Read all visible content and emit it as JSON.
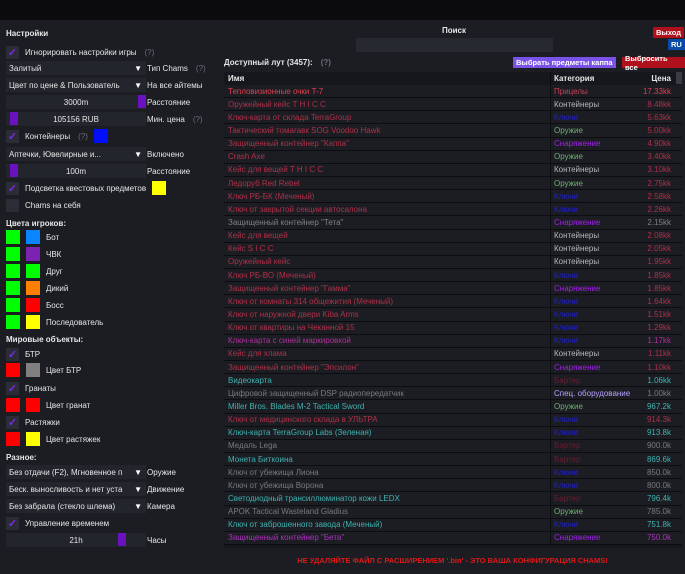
{
  "settings": {
    "title": "Настройки",
    "ignore_game_settings": "Игнорировать настройки игры",
    "help": "(?)",
    "chams_type_value": "Залитый",
    "chams_type_label": "Тип Chams",
    "color_mode_value": "Цвет по цене & Пользователь",
    "color_mode_label": "На все айтемы",
    "distance_value": "3000m",
    "distance_label": "Расстояние",
    "min_price_value": "105156 RUB",
    "min_price_label": "Мин. цена",
    "containers": "Контейнеры",
    "containers_color": "#0010ff",
    "containers_types_value": "Аптечки, Ювелирные и...",
    "containers_types_label": "Включено",
    "container_distance_value": "100m",
    "container_distance_label": "Расстояние",
    "quest_highlight": "Подсветка квестовых предметов",
    "quest_color": "#ffff00",
    "chams_self": "Chams на себя",
    "player_colors_title": "Цвета игроков:",
    "players": [
      {
        "label": "Бот",
        "c1": "#00ff00",
        "c2": "#0a84ff"
      },
      {
        "label": "ЧВК",
        "c1": "#00ff00",
        "c2": "#7b22b0"
      },
      {
        "label": "Друг",
        "c1": "#00ff00",
        "c2": "#00ff00"
      },
      {
        "label": "Дикий",
        "c1": "#00ff00",
        "c2": "#ff8000"
      },
      {
        "label": "Босс",
        "c1": "#00ff00",
        "c2": "#ff0000"
      },
      {
        "label": "Последователь",
        "c1": "#00ff00",
        "c2": "#ffff00"
      }
    ],
    "world_title": "Мировые объекты:",
    "btr": "БТР",
    "btr_color_label": "Цвет БТР",
    "btr_c1": "#ff0000",
    "btr_c2": "#808080",
    "grenades": "Гранаты",
    "grenade_color_label": "Цвет гранат",
    "gr_c1": "#ff0000",
    "gr_c2": "#ff0000",
    "tripwires": "Растяжки",
    "tripwire_color_label": "Цвет растяжек",
    "tw_c1": "#ff0000",
    "tw_c2": "#ffff00",
    "misc_title": "Разное:",
    "weapon_value": "Без отдачи (F2), Мгновенное п",
    "weapon_label": "Оружие",
    "movement_value": "Беск. выносливость и нет уста",
    "movement_label": "Движение",
    "camera_value": "Без забрала (стекло шлема)",
    "camera_label": "Камера",
    "time_control": "Управление временем",
    "hours_value": "21h",
    "hours_label": "Часы"
  },
  "header": {
    "search_label": "Поиск",
    "search_value": "",
    "exit": "Выход",
    "lang": "RU",
    "loot_label": "Доступный лут (3457):",
    "help": "(?)",
    "select_kappa": "Выбрать предметы каппа",
    "drop_all": "Выбросить все"
  },
  "table": {
    "columns": [
      "Имя",
      "Категория",
      "Цена"
    ],
    "rows": [
      [
        "Тепловизионные очки T-7",
        "Прицелы",
        "17.33kk",
        "#e04050"
      ],
      [
        "Оружейный кейс T H I C C",
        "Контейнеры",
        "8.48kk",
        "#b03048"
      ],
      [
        "Ключ-карта от склада TerraGroup",
        "Ключи",
        "5.63kk",
        "#b03048"
      ],
      [
        "Тактический томагавк SOG Voodoo Hawk",
        "Оружие",
        "5.00kk",
        "#b03048"
      ],
      [
        "Защищенный контейнер \"Каппа\"",
        "Снаряжение",
        "4.90kk",
        "#b03048"
      ],
      [
        "Crash Axe",
        "Оружие",
        "3.40kk",
        "#b03048"
      ],
      [
        "Кейс для вещей T H I C C",
        "Контейнеры",
        "3.10kk",
        "#b03048"
      ],
      [
        "Ледоруб Red Rebel",
        "Оружие",
        "2.75kk",
        "#b03048"
      ],
      [
        "Ключ РБ-БК (Меченый)",
        "Ключи",
        "2.58kk",
        "#b03048"
      ],
      [
        "Ключ от закрытой секции автосалона",
        "Ключи",
        "2.26kk",
        "#b03048"
      ],
      [
        "Защищенный контейнер \"Тета\"",
        "Снаряжение",
        "2.15kk",
        "#808080"
      ],
      [
        "Кейс для вещей",
        "Контейнеры",
        "2.08kk",
        "#b03048"
      ],
      [
        "Кейс S I C C",
        "Контейнеры",
        "2.05kk",
        "#b03048"
      ],
      [
        "Оружейный кейс",
        "Контейнеры",
        "1.95kk",
        "#b03048"
      ],
      [
        "Ключ РБ-ВО (Меченый)",
        "Ключи",
        "1.85kk",
        "#b03048"
      ],
      [
        "Защищенный контейнер \"Гамма\"",
        "Снаряжение",
        "1.85kk",
        "#b03048"
      ],
      [
        "Ключ от комнаты 314 общежития (Меченый)",
        "Ключи",
        "1.64kk",
        "#b03048"
      ],
      [
        "Ключ от наружной двери Kiba Arms",
        "Ключи",
        "1.51kk",
        "#b03048"
      ],
      [
        "Ключ от квартиры на Чеканной 15",
        "Ключи",
        "1.29kk",
        "#b03048"
      ],
      [
        "Ключ-карта с синей маркировкой",
        "Ключи",
        "1.17kk",
        "#b0309a"
      ],
      [
        "Кейс для хлама",
        "Контейнеры",
        "1.11kk",
        "#b03048"
      ],
      [
        "Защищенный контейнер \"Эпсилон\"",
        "Снаряжение",
        "1.10kk",
        "#b03048"
      ],
      [
        "Видеокарта",
        "Бартер",
        "1.06kk",
        "#3fb3b0"
      ],
      [
        "Цифровой защищенный DSP радиопередатчик",
        "Спец. оборудование",
        "1.00kk",
        "#7a7a7a"
      ],
      [
        "Miller Bros. Blades M-2 Tactical Sword",
        "Оружие",
        "967.2k",
        "#3fb3b0"
      ],
      [
        "Ключ от медицинского склада в УЛЬТРА",
        "Ключи",
        "914.3k",
        "#b03048"
      ],
      [
        "Ключ-карта TerraGroup Labs (Зеленая)",
        "Ключи",
        "913.8k",
        "#3fb3b0"
      ],
      [
        "Медаль Lega",
        "Бартер",
        "900.0k",
        "#7a7a7a"
      ],
      [
        "Монета Биткоина",
        "Бартер",
        "869.6k",
        "#3fb3b0"
      ],
      [
        "Ключ от убежища Лиона",
        "Ключи",
        "850.0k",
        "#7a7a7a"
      ],
      [
        "Ключ от убежища Ворона",
        "Ключи",
        "800.0k",
        "#7a7a7a"
      ],
      [
        "Светодиодный трансиллюминатор кожи LEDX",
        "Бартер",
        "796.4k",
        "#3fb3b0"
      ],
      [
        "APOK Tactical Wasteland Gladius",
        "Оружие",
        "785.0k",
        "#7a7a7a"
      ],
      [
        "Ключ от заброшенного завода (Меченый)",
        "Ключи",
        "751.8k",
        "#3fb3b0"
      ],
      [
        "Защищенный контейнер \"Бета\"",
        "Снаряжение",
        "750.0k",
        "#b030c0"
      ]
    ]
  },
  "category_colors": {
    "Прицелы": "#c84058",
    "Контейнеры": "#b8b8b8",
    "Ключи": "#2020c8",
    "Оружие": "#70b070",
    "Снаряжение": "#a020e8",
    "Бартер": "#6a1c30",
    "Спец. оборудование": "#b8a0ff"
  },
  "footer": "НЕ УДАЛЯЙТЕ ФАЙЛ С РАСШИРЕНИЕМ '.bin' - ЭТО ВАША КОНФИГУРАЦИЯ CHAMS!"
}
